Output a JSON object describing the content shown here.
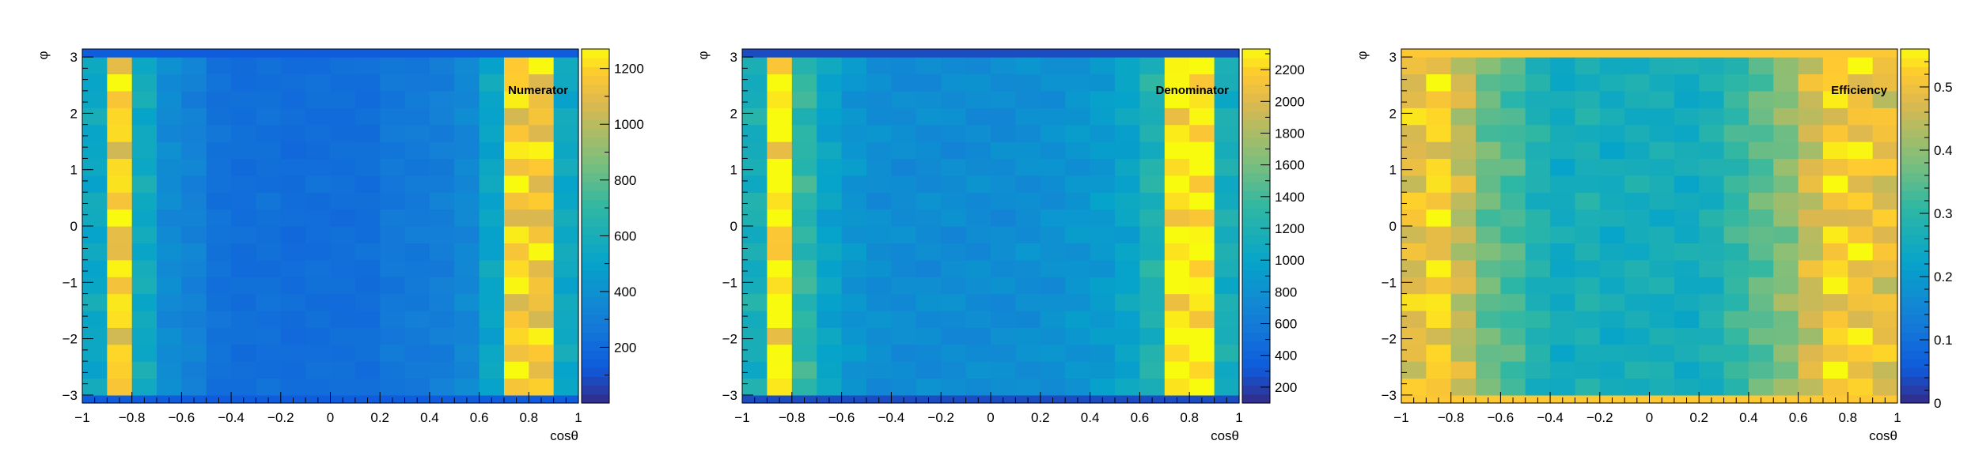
{
  "chart_data": [
    {
      "type": "heatmap",
      "title": "Numerator",
      "xlabel": "cosθ",
      "ylabel": "φ",
      "xlim": [
        -1,
        1
      ],
      "ylim": [
        -3.1416,
        3.1416
      ],
      "zlim": [
        0,
        1270
      ],
      "x_edges": [
        -1,
        -0.9,
        -0.8,
        -0.7,
        -0.6,
        -0.5,
        -0.4,
        -0.3,
        -0.2,
        -0.1,
        0,
        0.1,
        0.2,
        0.3,
        0.4,
        0.5,
        0.6,
        0.7,
        0.8,
        0.9,
        1
      ],
      "y_edges": [
        -3.1416,
        -3.0,
        -2.7,
        -2.4,
        -2.1,
        -1.8,
        -1.5,
        -1.2,
        -0.9,
        -0.6,
        -0.3,
        0.0,
        0.3,
        0.6,
        0.9,
        1.2,
        1.5,
        1.8,
        2.1,
        2.4,
        2.7,
        3.0,
        3.1416
      ],
      "x_ticks": [
        -1,
        -0.8,
        -0.6,
        -0.4,
        -0.2,
        0,
        0.2,
        0.4,
        0.6,
        0.8,
        1
      ],
      "x_tick_labels": [
        "−1",
        "−0.8",
        "−0.6",
        "−0.4",
        "−0.2",
        "0",
        "0.2",
        "0.4",
        "0.6",
        "0.8",
        "1"
      ],
      "y_ticks": [
        -3,
        -2,
        -1,
        0,
        1,
        2,
        3
      ],
      "y_tick_labels": [
        "−3",
        "−2",
        "−1",
        "0",
        "1",
        "2",
        "3"
      ],
      "z_ticks": [
        200,
        400,
        600,
        800,
        1000,
        1200
      ],
      "z_tick_labels": [
        "200",
        "400",
        "600",
        "800",
        "1000",
        "1200"
      ],
      "z_minor_step": 100,
      "column_profile": [
        540,
        1180,
        560,
        370,
        320,
        240,
        220,
        230,
        210,
        220,
        220,
        220,
        270,
        280,
        300,
        350,
        520,
        1180,
        1150,
        550
      ],
      "edge_value": 130
    },
    {
      "type": "heatmap",
      "title": "Denominator",
      "xlabel": "cosθ",
      "ylabel": "φ",
      "xlim": [
        -1,
        1
      ],
      "ylim": [
        -3.1416,
        3.1416
      ],
      "zlim": [
        100,
        2330
      ],
      "x_edges": [
        -1,
        -0.9,
        -0.8,
        -0.7,
        -0.6,
        -0.5,
        -0.4,
        -0.3,
        -0.2,
        -0.1,
        0,
        0.1,
        0.2,
        0.3,
        0.4,
        0.5,
        0.6,
        0.7,
        0.8,
        0.9,
        1
      ],
      "y_edges": [
        -3.1416,
        -3.0,
        -2.7,
        -2.4,
        -2.1,
        -1.8,
        -1.5,
        -1.2,
        -0.9,
        -0.6,
        -0.3,
        0.0,
        0.3,
        0.6,
        0.9,
        1.2,
        1.5,
        1.8,
        2.1,
        2.4,
        2.7,
        3.0,
        3.1416
      ],
      "x_ticks": [
        -1,
        -0.8,
        -0.6,
        -0.4,
        -0.2,
        0,
        0.2,
        0.4,
        0.6,
        0.8,
        1
      ],
      "x_tick_labels": [
        "−1",
        "−0.8",
        "−0.6",
        "−0.4",
        "−0.2",
        "0",
        "0.2",
        "0.4",
        "0.6",
        "0.8",
        "1"
      ],
      "y_ticks": [
        -3,
        -2,
        -1,
        0,
        1,
        2,
        3
      ],
      "y_tick_labels": [
        "−3",
        "−2",
        "−1",
        "0",
        "1",
        "2",
        "3"
      ],
      "z_ticks": [
        200,
        400,
        600,
        800,
        1000,
        1200,
        1400,
        1600,
        1800,
        2000,
        2200
      ],
      "z_tick_labels": [
        "200",
        "400",
        "600",
        "800",
        "1000",
        "1200",
        "1400",
        "1600",
        "1800",
        "2000",
        "2200"
      ],
      "z_minor_step": 100,
      "column_profile": [
        1150,
        2300,
        1300,
        1000,
        850,
        780,
        760,
        760,
        760,
        760,
        760,
        780,
        800,
        850,
        900,
        1000,
        1200,
        2300,
        2300,
        1150
      ],
      "edge_value": 250
    },
    {
      "type": "heatmap",
      "title": "Efficiency",
      "xlabel": "cosθ",
      "ylabel": "φ",
      "xlim": [
        -1,
        1
      ],
      "ylim": [
        -3.1416,
        3.1416
      ],
      "zlim": [
        0,
        0.56
      ],
      "x_edges": [
        -1,
        -0.9,
        -0.8,
        -0.7,
        -0.6,
        -0.5,
        -0.4,
        -0.3,
        -0.2,
        -0.1,
        0,
        0.1,
        0.2,
        0.3,
        0.4,
        0.5,
        0.6,
        0.7,
        0.8,
        0.9,
        1
      ],
      "y_edges": [
        -3.1416,
        -3.0,
        -2.7,
        -2.4,
        -2.1,
        -1.8,
        -1.5,
        -1.2,
        -0.9,
        -0.6,
        -0.3,
        0.0,
        0.3,
        0.6,
        0.9,
        1.2,
        1.5,
        1.8,
        2.1,
        2.4,
        2.7,
        3.0,
        3.1416
      ],
      "x_ticks": [
        -1,
        -0.8,
        -0.6,
        -0.4,
        -0.2,
        0,
        0.2,
        0.4,
        0.6,
        0.8,
        1
      ],
      "x_tick_labels": [
        "−1",
        "−0.8",
        "−0.6",
        "−0.4",
        "−0.2",
        "0",
        "0.2",
        "0.4",
        "0.6",
        "0.8",
        "1"
      ],
      "y_ticks": [
        -3,
        -2,
        -1,
        0,
        1,
        2,
        3
      ],
      "y_tick_labels": [
        "−3",
        "−2",
        "−1",
        "0",
        "1",
        "2",
        "3"
      ],
      "z_ticks": [
        0,
        0.1,
        0.2,
        0.3,
        0.4,
        0.5
      ],
      "z_tick_labels": [
        "0",
        "0.1",
        "0.2",
        "0.3",
        "0.4",
        "0.5"
      ],
      "z_minor_step": 0.02,
      "column_profile": [
        0.49,
        0.52,
        0.45,
        0.36,
        0.33,
        0.28,
        0.25,
        0.27,
        0.25,
        0.26,
        0.26,
        0.25,
        0.27,
        0.31,
        0.35,
        0.39,
        0.46,
        0.52,
        0.51,
        0.49
      ],
      "edge_value": 0.52
    }
  ]
}
